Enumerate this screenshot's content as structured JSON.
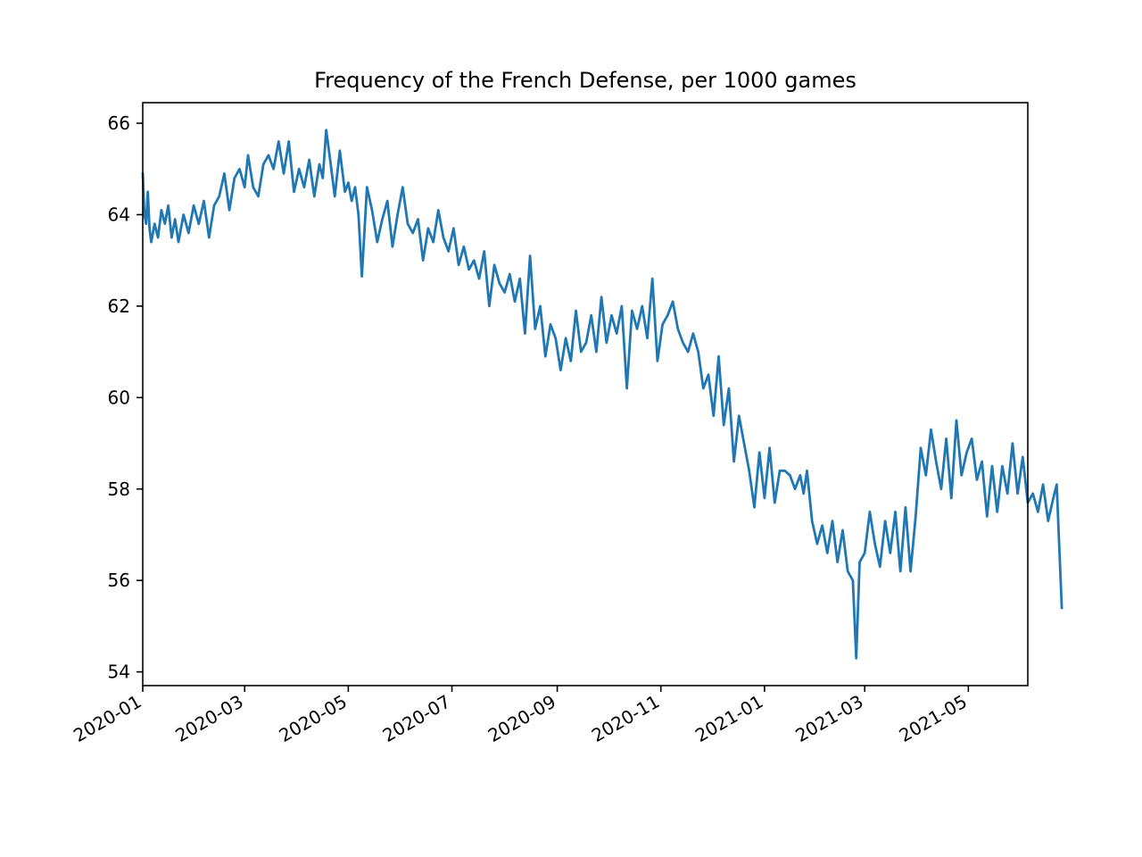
{
  "chart_data": {
    "type": "line",
    "title": "Frequency of the French Defense, per 1000 games",
    "xlabel": "",
    "ylabel": "",
    "x_axis_type": "date",
    "xlim": [
      "2020-01-01",
      "2021-06-05"
    ],
    "ylim": [
      53.7,
      66.45
    ],
    "x_ticks": [
      "2020-01",
      "2020-03",
      "2020-05",
      "2020-07",
      "2020-09",
      "2020-11",
      "2021-01",
      "2021-03",
      "2021-05"
    ],
    "y_ticks": [
      54,
      56,
      58,
      60,
      62,
      64,
      66
    ],
    "grid": false,
    "legend": "none",
    "line_color": "#1f77b4",
    "series": [
      {
        "points": [
          [
            "2020-01-01",
            64.9
          ],
          [
            "2020-01-02",
            64.0
          ],
          [
            "2020-01-03",
            63.8
          ],
          [
            "2020-01-04",
            64.5
          ],
          [
            "2020-01-05",
            63.7
          ],
          [
            "2020-01-06",
            63.4
          ],
          [
            "2020-01-08",
            63.8
          ],
          [
            "2020-01-10",
            63.5
          ],
          [
            "2020-01-12",
            64.1
          ],
          [
            "2020-01-14",
            63.8
          ],
          [
            "2020-01-16",
            64.2
          ],
          [
            "2020-01-18",
            63.5
          ],
          [
            "2020-01-20",
            63.9
          ],
          [
            "2020-01-22",
            63.4
          ],
          [
            "2020-01-25",
            64.0
          ],
          [
            "2020-01-28",
            63.6
          ],
          [
            "2020-01-31",
            64.2
          ],
          [
            "2020-02-03",
            63.8
          ],
          [
            "2020-02-06",
            64.3
          ],
          [
            "2020-02-09",
            63.5
          ],
          [
            "2020-02-12",
            64.2
          ],
          [
            "2020-02-15",
            64.4
          ],
          [
            "2020-02-18",
            64.9
          ],
          [
            "2020-02-21",
            64.1
          ],
          [
            "2020-02-24",
            64.8
          ],
          [
            "2020-02-27",
            65.0
          ],
          [
            "2020-03-01",
            64.6
          ],
          [
            "2020-03-03",
            65.3
          ],
          [
            "2020-03-06",
            64.6
          ],
          [
            "2020-03-09",
            64.4
          ],
          [
            "2020-03-12",
            65.1
          ],
          [
            "2020-03-15",
            65.3
          ],
          [
            "2020-03-18",
            65.0
          ],
          [
            "2020-03-21",
            65.6
          ],
          [
            "2020-03-24",
            64.9
          ],
          [
            "2020-03-27",
            65.6
          ],
          [
            "2020-03-30",
            64.5
          ],
          [
            "2020-04-02",
            65.0
          ],
          [
            "2020-04-05",
            64.6
          ],
          [
            "2020-04-08",
            65.2
          ],
          [
            "2020-04-11",
            64.4
          ],
          [
            "2020-04-14",
            65.1
          ],
          [
            "2020-04-16",
            64.8
          ],
          [
            "2020-04-18",
            65.85
          ],
          [
            "2020-04-20",
            65.3
          ],
          [
            "2020-04-23",
            64.4
          ],
          [
            "2020-04-26",
            65.4
          ],
          [
            "2020-04-29",
            64.5
          ],
          [
            "2020-05-01",
            64.7
          ],
          [
            "2020-05-03",
            64.3
          ],
          [
            "2020-05-05",
            64.6
          ],
          [
            "2020-05-07",
            64.0
          ],
          [
            "2020-05-09",
            62.65
          ],
          [
            "2020-05-12",
            64.6
          ],
          [
            "2020-05-15",
            64.1
          ],
          [
            "2020-05-18",
            63.4
          ],
          [
            "2020-05-21",
            63.9
          ],
          [
            "2020-05-24",
            64.3
          ],
          [
            "2020-05-27",
            63.3
          ],
          [
            "2020-05-30",
            64.0
          ],
          [
            "2020-06-02",
            64.6
          ],
          [
            "2020-06-05",
            63.8
          ],
          [
            "2020-06-08",
            63.6
          ],
          [
            "2020-06-11",
            63.9
          ],
          [
            "2020-06-14",
            63.0
          ],
          [
            "2020-06-17",
            63.7
          ],
          [
            "2020-06-20",
            63.4
          ],
          [
            "2020-06-23",
            64.1
          ],
          [
            "2020-06-26",
            63.5
          ],
          [
            "2020-06-29",
            63.2
          ],
          [
            "2020-07-02",
            63.7
          ],
          [
            "2020-07-05",
            62.9
          ],
          [
            "2020-07-08",
            63.3
          ],
          [
            "2020-07-11",
            62.8
          ],
          [
            "2020-07-14",
            63.0
          ],
          [
            "2020-07-17",
            62.6
          ],
          [
            "2020-07-20",
            63.2
          ],
          [
            "2020-07-23",
            62.0
          ],
          [
            "2020-07-26",
            62.9
          ],
          [
            "2020-07-29",
            62.5
          ],
          [
            "2020-08-01",
            62.3
          ],
          [
            "2020-08-04",
            62.7
          ],
          [
            "2020-08-07",
            62.1
          ],
          [
            "2020-08-10",
            62.6
          ],
          [
            "2020-08-13",
            61.4
          ],
          [
            "2020-08-16",
            63.1
          ],
          [
            "2020-08-19",
            61.5
          ],
          [
            "2020-08-22",
            62.0
          ],
          [
            "2020-08-25",
            60.9
          ],
          [
            "2020-08-28",
            61.6
          ],
          [
            "2020-08-31",
            61.3
          ],
          [
            "2020-09-03",
            60.6
          ],
          [
            "2020-09-06",
            61.3
          ],
          [
            "2020-09-09",
            60.8
          ],
          [
            "2020-09-12",
            61.9
          ],
          [
            "2020-09-15",
            61.0
          ],
          [
            "2020-09-18",
            61.2
          ],
          [
            "2020-09-21",
            61.8
          ],
          [
            "2020-09-24",
            61.0
          ],
          [
            "2020-09-27",
            62.2
          ],
          [
            "2020-09-30",
            61.2
          ],
          [
            "2020-10-03",
            61.8
          ],
          [
            "2020-10-06",
            61.4
          ],
          [
            "2020-10-09",
            62.0
          ],
          [
            "2020-10-12",
            60.2
          ],
          [
            "2020-10-15",
            61.9
          ],
          [
            "2020-10-18",
            61.5
          ],
          [
            "2020-10-21",
            62.0
          ],
          [
            "2020-10-24",
            61.3
          ],
          [
            "2020-10-27",
            62.6
          ],
          [
            "2020-10-30",
            60.8
          ],
          [
            "2020-11-02",
            61.6
          ],
          [
            "2020-11-05",
            61.8
          ],
          [
            "2020-11-08",
            62.1
          ],
          [
            "2020-11-11",
            61.5
          ],
          [
            "2020-11-14",
            61.2
          ],
          [
            "2020-11-17",
            61.0
          ],
          [
            "2020-11-20",
            61.4
          ],
          [
            "2020-11-23",
            61.0
          ],
          [
            "2020-11-26",
            60.2
          ],
          [
            "2020-11-29",
            60.5
          ],
          [
            "2020-12-02",
            59.6
          ],
          [
            "2020-12-05",
            60.9
          ],
          [
            "2020-12-08",
            59.4
          ],
          [
            "2020-12-11",
            60.2
          ],
          [
            "2020-12-14",
            58.6
          ],
          [
            "2020-12-17",
            59.6
          ],
          [
            "2020-12-20",
            59.0
          ],
          [
            "2020-12-23",
            58.4
          ],
          [
            "2020-12-26",
            57.6
          ],
          [
            "2020-12-29",
            58.8
          ],
          [
            "2021-01-01",
            57.8
          ],
          [
            "2021-01-04",
            58.9
          ],
          [
            "2021-01-07",
            57.7
          ],
          [
            "2021-01-10",
            58.4
          ],
          [
            "2021-01-13",
            58.4
          ],
          [
            "2021-01-16",
            58.3
          ],
          [
            "2021-01-19",
            58.0
          ],
          [
            "2021-01-22",
            58.3
          ],
          [
            "2021-01-24",
            57.9
          ],
          [
            "2021-01-26",
            58.4
          ],
          [
            "2021-01-29",
            57.3
          ],
          [
            "2021-02-01",
            56.8
          ],
          [
            "2021-02-04",
            57.2
          ],
          [
            "2021-02-07",
            56.6
          ],
          [
            "2021-02-10",
            57.3
          ],
          [
            "2021-02-13",
            56.4
          ],
          [
            "2021-02-16",
            57.1
          ],
          [
            "2021-02-19",
            56.2
          ],
          [
            "2021-02-22",
            56.0
          ],
          [
            "2021-02-24",
            54.3
          ],
          [
            "2021-02-26",
            56.4
          ],
          [
            "2021-03-01",
            56.6
          ],
          [
            "2021-03-04",
            57.5
          ],
          [
            "2021-03-07",
            56.8
          ],
          [
            "2021-03-10",
            56.3
          ],
          [
            "2021-03-13",
            57.3
          ],
          [
            "2021-03-16",
            56.6
          ],
          [
            "2021-03-19",
            57.5
          ],
          [
            "2021-03-22",
            56.2
          ],
          [
            "2021-03-25",
            57.6
          ],
          [
            "2021-03-28",
            56.2
          ],
          [
            "2021-03-31",
            57.4
          ],
          [
            "2021-04-03",
            58.9
          ],
          [
            "2021-04-06",
            58.3
          ],
          [
            "2021-04-09",
            59.3
          ],
          [
            "2021-04-12",
            58.6
          ],
          [
            "2021-04-15",
            58.0
          ],
          [
            "2021-04-18",
            59.1
          ],
          [
            "2021-04-21",
            57.8
          ],
          [
            "2021-04-24",
            59.5
          ],
          [
            "2021-04-27",
            58.3
          ],
          [
            "2021-04-30",
            58.8
          ],
          [
            "2021-05-03",
            59.1
          ],
          [
            "2021-05-06",
            58.2
          ],
          [
            "2021-05-09",
            58.6
          ],
          [
            "2021-05-12",
            57.4
          ],
          [
            "2021-05-15",
            58.5
          ],
          [
            "2021-05-18",
            57.5
          ],
          [
            "2021-05-21",
            58.5
          ],
          [
            "2021-05-24",
            57.9
          ],
          [
            "2021-05-27",
            59.0
          ],
          [
            "2021-05-30",
            57.9
          ],
          [
            "2021-06-02",
            58.7
          ],
          [
            "2021-06-05",
            57.7
          ],
          [
            "2021-06-08",
            57.9
          ],
          [
            "2021-06-11",
            57.5
          ],
          [
            "2021-06-14",
            58.1
          ],
          [
            "2021-06-17",
            57.3
          ],
          [
            "2021-06-20",
            57.8
          ],
          [
            "2021-06-22",
            58.1
          ],
          [
            "2021-06-25",
            55.4
          ]
        ]
      }
    ]
  }
}
